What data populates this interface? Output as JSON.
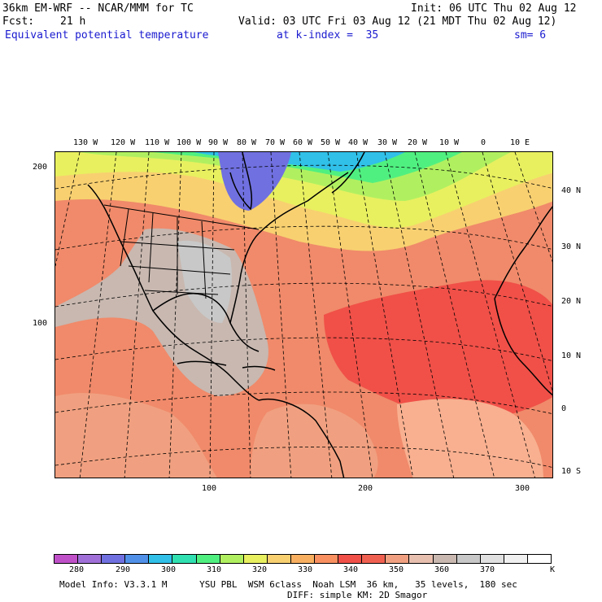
{
  "header": {
    "model": "36km EM-WRF -- NCAR/MMM for TC",
    "init": "Init: 06 UTC Thu 02 Aug 12",
    "fcst_label": "Fcst:",
    "fcst_hours": "21 h",
    "valid": "Valid: 03 UTC Fri 03 Aug 12 (21 MDT Thu 02 Aug 12)",
    "field": "Equivalent potential temperature",
    "level": "at k-index =  35",
    "smoothing": "sm= 6"
  },
  "map": {
    "top_lon_labels": [
      "130 W",
      "120 W",
      "110 W",
      "100 W",
      "90 W",
      "80 W",
      "70 W",
      "60 W",
      "50 W",
      "40 W",
      "30 W",
      "20 W",
      "10 W",
      "0",
      "10 E"
    ],
    "right_lat_labels": [
      "40 N",
      "30 N",
      "20 N",
      "10 N",
      "0",
      "10 S"
    ],
    "left_grid_labels": [
      "200",
      "100"
    ],
    "bottom_grid_labels": [
      "100",
      "200",
      "300"
    ]
  },
  "colorbar": {
    "colors": [
      "#c050c8",
      "#a070d8",
      "#7070e0",
      "#5090e8",
      "#30c0e8",
      "#30e0b0",
      "#50f080",
      "#b0f060",
      "#e8f060",
      "#f8d070",
      "#f8b060",
      "#f89060",
      "#f05048",
      "#f06050",
      "#f0a080",
      "#e8c0b0",
      "#c8b8b0",
      "#c8c8c8",
      "#e0e0e0",
      "#f0f0f0",
      "#ffffff"
    ],
    "labels": [
      "280",
      "290",
      "300",
      "310",
      "320",
      "330",
      "340",
      "350",
      "360",
      "370"
    ],
    "unit": "K"
  },
  "footer": {
    "line1": "Model Info: V3.3.1 M      YSU PBL  WSM 6class  Noah LSM  36 km,   35 levels,  180 sec",
    "line2": "DIFF: simple KM: 2D Smagor"
  }
}
